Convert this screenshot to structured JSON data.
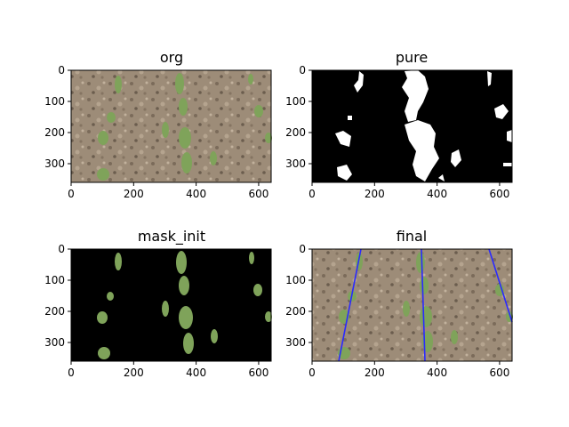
{
  "figure": {
    "panels": [
      {
        "id": "org",
        "title": "org",
        "kind": "photo",
        "x_ticks": [
          "0",
          "200",
          "400",
          "600"
        ],
        "y_ticks": [
          "0",
          "100",
          "200",
          "300"
        ]
      },
      {
        "id": "pure",
        "title": "pure",
        "kind": "binary-mask",
        "x_ticks": [
          "0",
          "200",
          "400",
          "600"
        ],
        "y_ticks": [
          "0",
          "100",
          "200",
          "300"
        ]
      },
      {
        "id": "mask_init",
        "title": "mask_init",
        "kind": "masked-photo",
        "x_ticks": [
          "0",
          "200",
          "400",
          "600"
        ],
        "y_ticks": [
          "0",
          "100",
          "200",
          "300"
        ]
      },
      {
        "id": "final",
        "title": "final",
        "kind": "photo-with-lines",
        "x_ticks": [
          "0",
          "200",
          "400",
          "600"
        ],
        "y_ticks": [
          "0",
          "100",
          "200",
          "300"
        ]
      }
    ],
    "colors": {
      "soil": "#9b8a76",
      "soil_dark": "#6d5e4f",
      "plant": "#7fa35a",
      "mask_bg": "#000000",
      "mask_fg": "#ffffff",
      "row_line": "#2a2aff"
    }
  }
}
